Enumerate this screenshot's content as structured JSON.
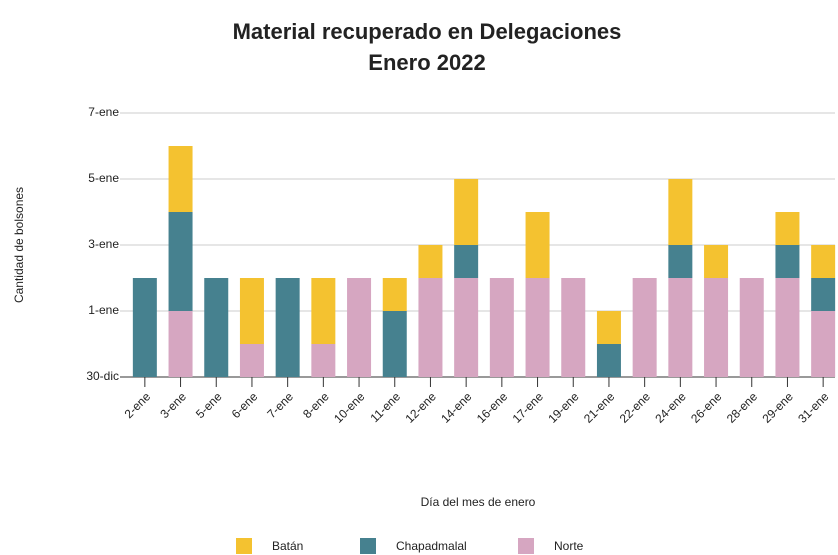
{
  "chart_data": {
    "type": "stacked_bar",
    "title": "Material recuperado en Delegaciones",
    "subtitle": "Enero 2022",
    "x_label": "Día del mes de enero",
    "y_label": "Cantidad de bolsones",
    "categories": [
      "2-ene",
      "3-ene",
      "5-ene",
      "6-ene",
      "7-ene",
      "8-ene",
      "10-ene",
      "11-ene",
      "12-ene",
      "14-ene",
      "16-ene",
      "17-ene",
      "19-ene",
      "21-ene",
      "22-ene",
      "24-ene",
      "26-ene",
      "28-ene",
      "29-ene",
      "31-ene"
    ],
    "series": [
      {
        "name": "Batán",
        "color": "#f4c230",
        "values": [
          0,
          2,
          0,
          2,
          0,
          2,
          0,
          1,
          1,
          2,
          0,
          2,
          0,
          1,
          0,
          2,
          1,
          0,
          1,
          1
        ]
      },
      {
        "name": "Chapadmalal",
        "color": "#46818f",
        "values": [
          3,
          3,
          3,
          0,
          3,
          0,
          0,
          2,
          0,
          1,
          0,
          0,
          0,
          1,
          0,
          1,
          0,
          0,
          1,
          1
        ]
      },
      {
        "name": "Norte",
        "color": "#d6a6c1",
        "values": [
          0,
          2,
          0,
          1,
          0,
          1,
          3,
          0,
          3,
          3,
          3,
          3,
          3,
          0,
          3,
          3,
          3,
          3,
          3,
          2
        ]
      }
    ],
    "ylim": [
      0,
      8
    ],
    "yticks": [
      {
        "value": 0,
        "label": "30-dic"
      },
      {
        "value": 2,
        "label": "1-ene"
      },
      {
        "value": 4,
        "label": "3-ene"
      },
      {
        "value": 6,
        "label": "5-ene"
      },
      {
        "value": 8,
        "label": "7-ene"
      }
    ],
    "grid": true,
    "legend": "bottom"
  }
}
